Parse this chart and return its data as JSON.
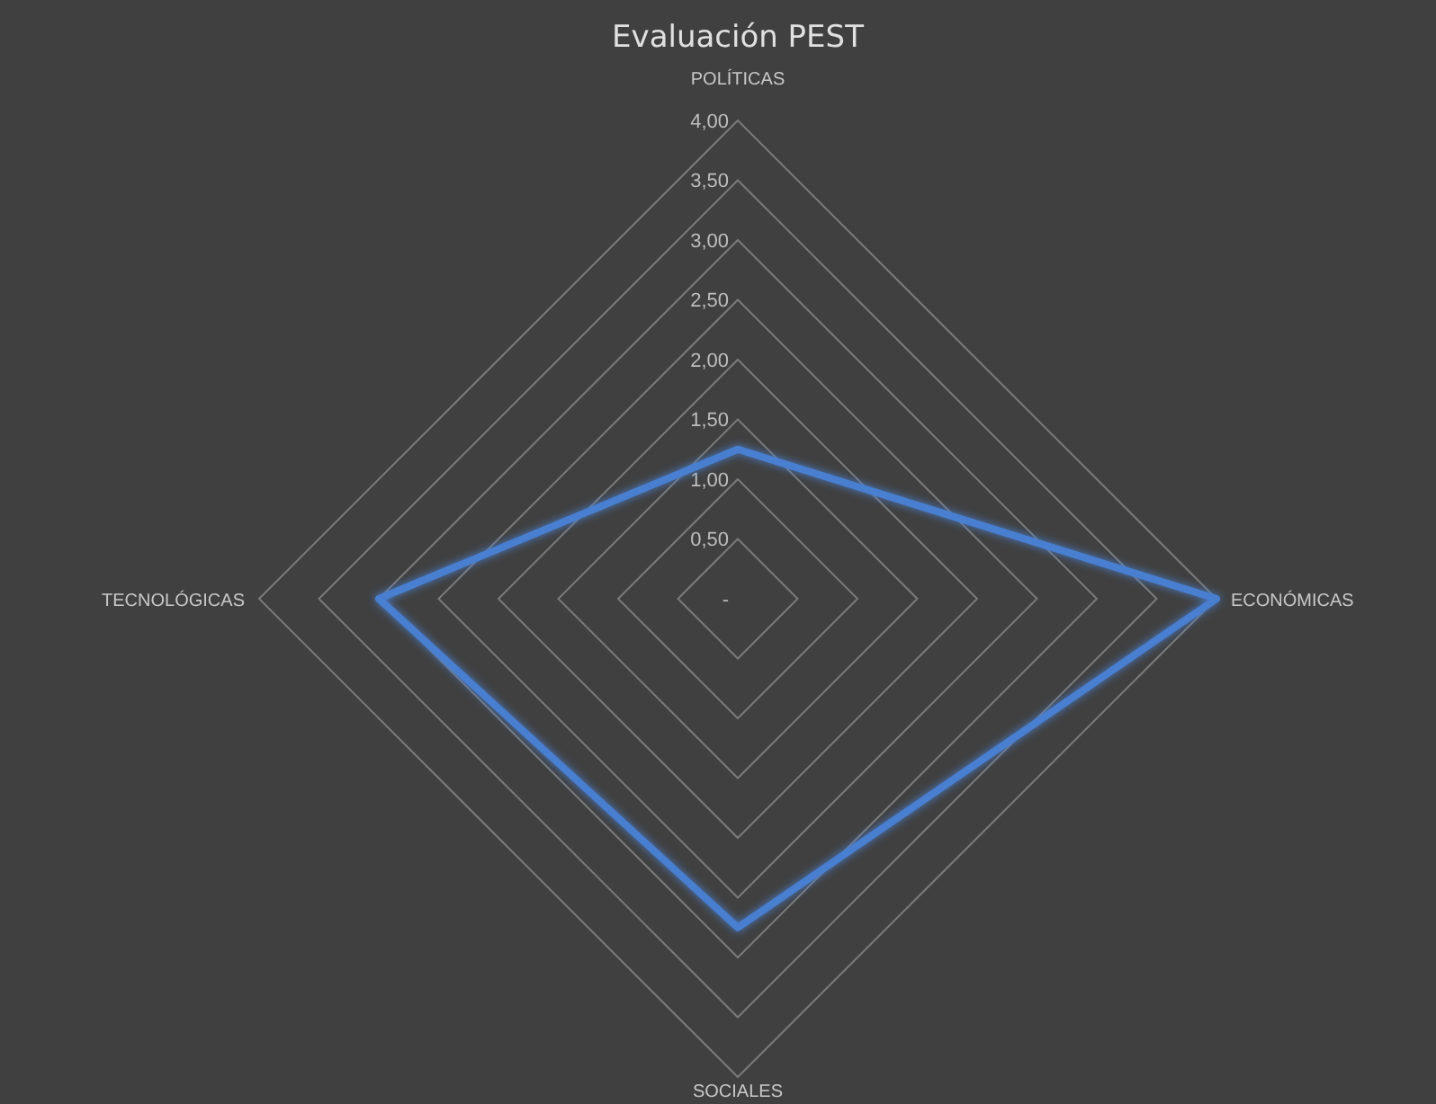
{
  "chart_data": {
    "type": "radar",
    "title": "Evaluación PEST",
    "categories": [
      "POLÍTICAS",
      "ECONÓMICAS",
      "SOCIALES",
      "TECNOLÓGICAS"
    ],
    "series": [
      {
        "color": "#4a7fd0",
        "values": [
          1.25,
          4,
          2.75,
          3
        ]
      }
    ],
    "ylim": [
      0,
      4
    ],
    "yticks": [
      {
        "value": 0,
        "label": "-"
      },
      {
        "value": 0.5,
        "label": "0,50"
      },
      {
        "value": 1,
        "label": "1,00"
      },
      {
        "value": 1.5,
        "label": "1,50"
      },
      {
        "value": 2,
        "label": "2,00"
      },
      {
        "value": 2.5,
        "label": "2,50"
      },
      {
        "value": 3,
        "label": "3,00"
      },
      {
        "value": 3.5,
        "label": "3,50"
      },
      {
        "value": 4,
        "label": "4,00"
      }
    ],
    "grid": true
  }
}
